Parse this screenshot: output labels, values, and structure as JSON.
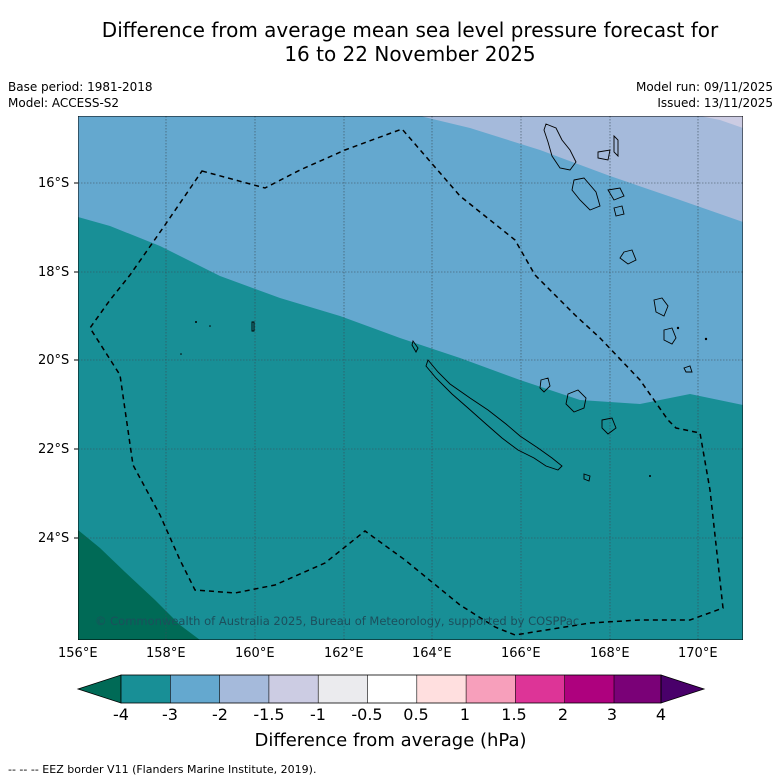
{
  "title_line1": "Difference from average mean sea level pressure forecast for",
  "title_line2": "16 to 22 November 2025",
  "meta": {
    "base_period": "Base period: 1981-2018",
    "model": "Model: ACCESS-S2",
    "model_run": "Model run: 09/11/2025",
    "issued": "Issued: 13/11/2025"
  },
  "lat_labels": [
    "16°S",
    "18°S",
    "20°S",
    "22°S",
    "24°S"
  ],
  "lon_labels": [
    "156°E",
    "158°E",
    "160°E",
    "162°E",
    "164°E",
    "166°E",
    "168°E",
    "170°E"
  ],
  "colorbar": {
    "title": "Difference from average (hPa)",
    "labels": [
      "-4",
      "-3",
      "-2",
      "-1.5",
      "-1",
      "-0.5",
      "0.5",
      "1",
      "1.5",
      "2",
      "3",
      "4"
    ],
    "colors": [
      "#188f96",
      "#64a8cf",
      "#a5badb",
      "#cccce3",
      "#ebebee",
      "#ffffff",
      "#ffdfdf",
      "#f79fbb",
      "#dd3497",
      "#ae017e",
      "#7a0177"
    ],
    "under_color": "#006a56",
    "over_color": "#49006a"
  },
  "copyright": "© Commonwealth of Australia 2025, Bureau of Meteorology, supported by COSPPac",
  "footnote": "--  --  -- EEZ border V11 (Flanders Marine Institute, 2019)."
}
